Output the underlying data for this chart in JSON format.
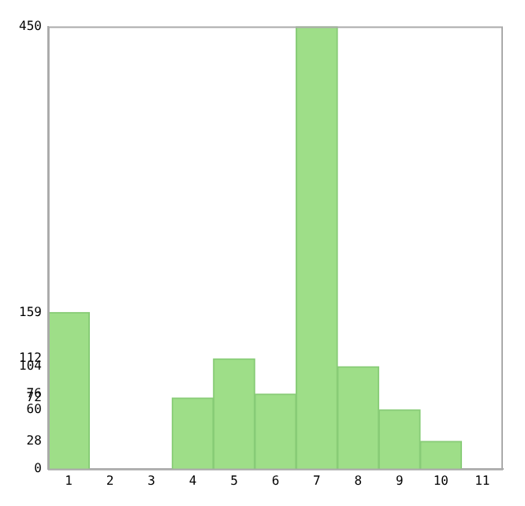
{
  "chart_data": {
    "type": "bar",
    "categories": [
      "1",
      "2",
      "3",
      "4",
      "5",
      "6",
      "7",
      "8",
      "9",
      "10",
      "11"
    ],
    "values": [
      159,
      0,
      0,
      72,
      112,
      76,
      450,
      104,
      60,
      28,
      0
    ],
    "color": "#9ede88",
    "ylim": [
      0,
      450
    ],
    "yticks": [
      0,
      28,
      60,
      72,
      76,
      104,
      112,
      159,
      450
    ],
    "grid": false,
    "legend": false
  }
}
